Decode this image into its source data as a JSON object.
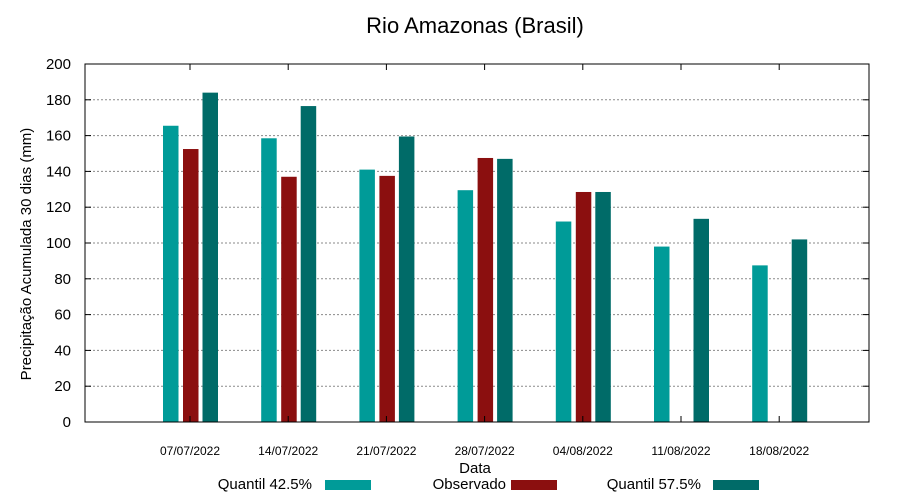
{
  "chart_data": {
    "type": "bar",
    "title": "Rio Amazonas (Brasil)",
    "xlabel": "Data",
    "ylabel": "Precipitação Acumulada 30 dias (mm)",
    "ylim": [
      0,
      200
    ],
    "yticks": [
      0,
      20,
      40,
      60,
      80,
      100,
      120,
      140,
      160,
      180,
      200
    ],
    "grid": true,
    "legend_position": "bottom",
    "categories": [
      "07/07/2022",
      "14/07/2022",
      "21/07/2022",
      "28/07/2022",
      "04/08/2022",
      "11/08/2022",
      "18/08/2022"
    ],
    "series": [
      {
        "name": "Quantil 42.5%",
        "color": "#009b98",
        "values": [
          165.5,
          158.5,
          141,
          129.5,
          112,
          98,
          87.5
        ]
      },
      {
        "name": "Observado",
        "color": "#8b0f0f",
        "values": [
          152.5,
          137,
          137.5,
          147.5,
          128.5,
          null,
          null
        ]
      },
      {
        "name": "Quantil 57.5%",
        "color": "#006b68",
        "values": [
          184,
          176.5,
          159.5,
          147,
          128.5,
          113.5,
          102
        ]
      }
    ]
  }
}
